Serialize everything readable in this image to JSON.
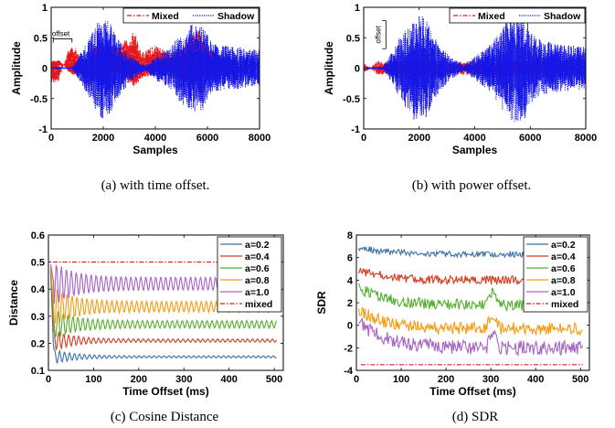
{
  "colors": {
    "mixed_red": "#e8161b",
    "shadow_blue": "#1515e6",
    "a02": "#3a6fa8",
    "a04": "#d43b1f",
    "a06": "#55ad2e",
    "a08": "#f39c12",
    "a10": "#a764c2",
    "mixed_dash": "#e8161b"
  },
  "chart_data": [
    {
      "id": "a",
      "type": "line",
      "caption": "(a)  with time offset.",
      "xlabel": "Samples",
      "ylabel": "Amplitude",
      "xlim": [
        0,
        8000
      ],
      "ylim": [
        -1,
        1
      ],
      "xticks": [
        0,
        2000,
        4000,
        6000,
        8000
      ],
      "yticks": [
        -1,
        -0.5,
        0,
        0.5,
        1
      ],
      "xtick_labels": [
        "0",
        "2000",
        "4000",
        "6000",
        "8000"
      ],
      "ytick_labels": [
        "-1",
        "-0.5",
        "0",
        "0.5",
        "1"
      ],
      "legend_position": "top-right",
      "annotation": "offset",
      "series": [
        {
          "name": "Mixed",
          "style": "dash-dot",
          "color": "#e8161b",
          "envelope": [
            [
              0,
              -0.3
            ],
            [
              300,
              -0.25
            ],
            [
              700,
              0.32
            ],
            [
              1000,
              0.35
            ],
            [
              1300,
              -0.3
            ],
            [
              1600,
              0.42
            ],
            [
              2100,
              0.35
            ],
            [
              2600,
              0.3
            ],
            [
              3000,
              0.58
            ],
            [
              3200,
              0.65
            ],
            [
              3500,
              0.3
            ],
            [
              4000,
              0.35
            ],
            [
              4500,
              0.2
            ],
            [
              5000,
              0.4
            ],
            [
              5300,
              0.6
            ],
            [
              5700,
              0.62
            ],
            [
              6000,
              0.3
            ],
            [
              7000,
              0.1
            ],
            [
              8000,
              0.05
            ]
          ]
        },
        {
          "name": "Shadow",
          "style": "dotted",
          "color": "#1515e6",
          "envelope": [
            [
              0,
              0
            ],
            [
              800,
              0.02
            ],
            [
              1200,
              0.3
            ],
            [
              1600,
              0.6
            ],
            [
              1900,
              0.85
            ],
            [
              2200,
              0.8
            ],
            [
              2700,
              0.4
            ],
            [
              3100,
              0.2
            ],
            [
              3600,
              0.05
            ],
            [
              4000,
              0.2
            ],
            [
              4600,
              0.35
            ],
            [
              5000,
              0.6
            ],
            [
              5400,
              0.75
            ],
            [
              5800,
              0.7
            ],
            [
              6200,
              0.4
            ],
            [
              7000,
              0.35
            ],
            [
              8000,
              0.3
            ]
          ]
        }
      ]
    },
    {
      "id": "b",
      "type": "line",
      "caption": "(b)  with power offset.",
      "xlabel": "Samples",
      "ylabel": "Amplitude",
      "xlim": [
        0,
        8000
      ],
      "ylim": [
        -1,
        1
      ],
      "xticks": [
        0,
        2000,
        4000,
        6000,
        8000
      ],
      "yticks": [
        -1,
        -0.5,
        0,
        0.5,
        1
      ],
      "xtick_labels": [
        "0",
        "2000",
        "4000",
        "6000",
        "8000"
      ],
      "ytick_labels": [
        "-1",
        "-0.5",
        "0",
        "0.5",
        "1"
      ],
      "legend_position": "top-right",
      "annotation": "offset",
      "series": [
        {
          "name": "Mixed",
          "style": "dash-dot",
          "color": "#e8161b",
          "envelope": [
            [
              0,
              -0.1
            ],
            [
              500,
              0.12
            ],
            [
              900,
              0.1
            ],
            [
              1300,
              0.15
            ],
            [
              1600,
              0.2
            ],
            [
              2100,
              0.25
            ],
            [
              2600,
              0.15
            ],
            [
              3100,
              0.1
            ],
            [
              4000,
              0.12
            ],
            [
              5000,
              0.15
            ],
            [
              6000,
              0.15
            ],
            [
              7000,
              0.08
            ],
            [
              8000,
              0.05
            ]
          ]
        },
        {
          "name": "Shadow",
          "style": "dotted",
          "color": "#1515e6",
          "envelope": [
            [
              0,
              0
            ],
            [
              700,
              0.03
            ],
            [
              1100,
              0.35
            ],
            [
              1500,
              0.65
            ],
            [
              1900,
              0.9
            ],
            [
              2200,
              0.85
            ],
            [
              2700,
              0.4
            ],
            [
              3100,
              0.2
            ],
            [
              3600,
              0.05
            ],
            [
              4000,
              0.2
            ],
            [
              4600,
              0.4
            ],
            [
              5000,
              0.7
            ],
            [
              5400,
              0.9
            ],
            [
              5800,
              0.85
            ],
            [
              6200,
              0.5
            ],
            [
              7000,
              0.4
            ],
            [
              8000,
              0.35
            ]
          ]
        }
      ]
    },
    {
      "id": "c",
      "type": "line",
      "caption": "(c)  Cosine Distance",
      "xlabel": "Time Offset (ms)",
      "ylabel": "Distance",
      "xlim": [
        0,
        520
      ],
      "ylim": [
        0.1,
        0.6
      ],
      "xticks": [
        0,
        100,
        200,
        300,
        400,
        500
      ],
      "yticks": [
        0.1,
        0.2,
        0.3,
        0.4,
        0.5,
        0.6
      ],
      "xtick_labels": [
        "0",
        "100",
        "200",
        "300",
        "400",
        "500"
      ],
      "ytick_labels": [
        "0.1",
        "0.2",
        "0.3",
        "0.4",
        "0.5",
        "0.6"
      ],
      "legend_position": "top-right",
      "series": [
        {
          "name": "a=0.2",
          "color": "#3a6fa8",
          "mean": 0.15,
          "amp0": 0.035,
          "ampEnd": 0.004,
          "period": 11
        },
        {
          "name": "a=0.4",
          "color": "#d43b1f",
          "mean": 0.21,
          "amp0": 0.05,
          "ampEnd": 0.006,
          "period": 11
        },
        {
          "name": "a=0.6",
          "color": "#55ad2e",
          "mean": 0.27,
          "amp0": 0.07,
          "ampEnd": 0.014,
          "period": 11
        },
        {
          "name": "a=0.8",
          "color": "#f39c12",
          "mean": 0.335,
          "amp0": 0.09,
          "ampEnd": 0.02,
          "period": 11
        },
        {
          "name": "a=1.0",
          "color": "#a764c2",
          "mean": 0.42,
          "amp0": 0.1,
          "ampEnd": 0.025,
          "period": 11
        },
        {
          "name": "mixed",
          "color": "#e8161b",
          "style": "dash-dot",
          "value": 0.5
        }
      ]
    },
    {
      "id": "d",
      "type": "line",
      "caption": "(d)  SDR",
      "xlabel": "Time Offset (ms)",
      "ylabel": "SDR",
      "xlim": [
        0,
        520
      ],
      "ylim": [
        -4,
        8
      ],
      "xticks": [
        0,
        100,
        200,
        300,
        400,
        500
      ],
      "yticks": [
        -4,
        -2,
        0,
        2,
        4,
        6,
        8
      ],
      "xtick_labels": [
        "0",
        "100",
        "200",
        "300",
        "400",
        "500"
      ],
      "ytick_labels": [
        "-4",
        "-2",
        "0",
        "2",
        "4",
        "6",
        "8"
      ],
      "legend_position": "top-right",
      "series": [
        {
          "name": "a=0.2",
          "color": "#3a6fa8",
          "start": 7.0,
          "end": 6.3,
          "noise": 0.35
        },
        {
          "name": "a=0.4",
          "color": "#d43b1f",
          "start": 5.0,
          "end": 4.0,
          "noise": 0.5
        },
        {
          "name": "a=0.6",
          "color": "#55ad2e",
          "start": 3.5,
          "end": 1.8,
          "noise": 0.6
        },
        {
          "name": "a=0.8",
          "color": "#f39c12",
          "start": 1.5,
          "end": -0.3,
          "noise": 0.7
        },
        {
          "name": "a=1.0",
          "color": "#a764c2",
          "start": 0.5,
          "end": -2.0,
          "noise": 0.8
        },
        {
          "name": "mixed",
          "color": "#e8161b",
          "style": "dash-dot",
          "value": -3.5
        }
      ]
    }
  ]
}
